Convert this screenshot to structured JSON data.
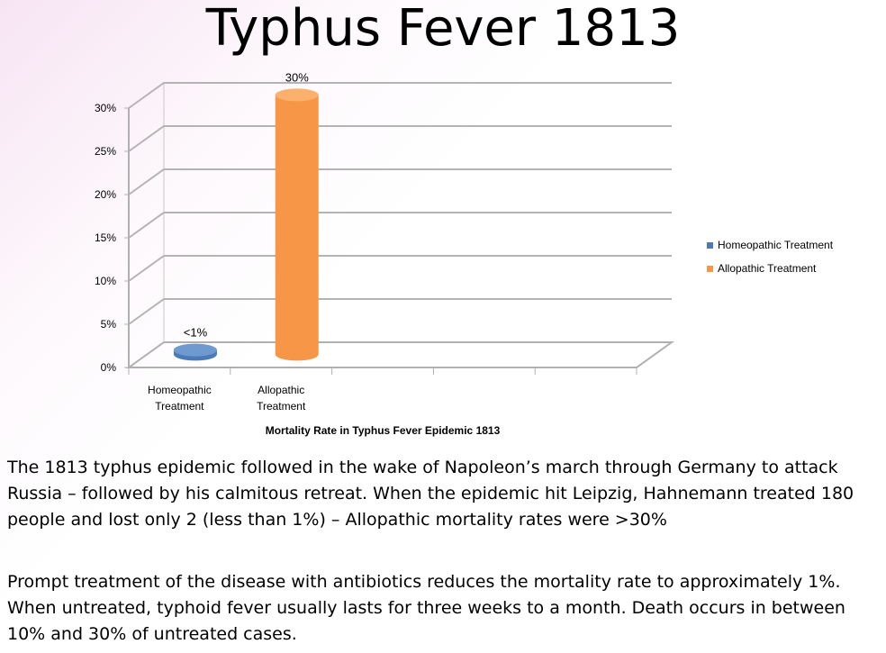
{
  "title": "Typhus Fever 1813",
  "chart_data": {
    "type": "bar",
    "bar_style": "3d-cylinder",
    "categories": [
      "Homeopathic Treatment",
      "Allopathic Treatment"
    ],
    "category_label_lines": [
      [
        "Homeopathic",
        "Treatment"
      ],
      [
        "Allopathic",
        "Treatment"
      ]
    ],
    "values": [
      0.5,
      30
    ],
    "value_unit": "%",
    "data_labels": [
      "<1%",
      "30%"
    ],
    "colors": [
      "#4a7ab8",
      "#f79646"
    ],
    "legend": [
      "Homeopathic Treatment",
      "Allopathic Treatment"
    ],
    "legend_position": "right",
    "xlabel": "Mortality Rate in Typhus Fever Epidemic 1813",
    "ylabel": "",
    "ylim": [
      0,
      30
    ],
    "yticks": [
      0,
      5,
      10,
      15,
      20,
      25,
      30
    ],
    "ytick_labels": [
      "0%",
      "5%",
      "10%",
      "15%",
      "20%",
      "25%",
      "30%"
    ],
    "grid": true
  },
  "paragraphs": [
    "The 1813 typhus epidemic followed in the wake of Napoleon’s march through Germany to attack Russia – followed by his calmitous retreat.  When the epidemic hit Leipzig, Hahnemann treated 180 people and lost only 2 (less than 1%) – Allopathic mortality rates were >30%",
    "Prompt treatment of the disease with antibiotics reduces the mortality rate to approximately 1%. When untreated, typhoid fever usually lasts for three weeks to a month. Death occurs in between 10% and 30% of untreated cases."
  ]
}
